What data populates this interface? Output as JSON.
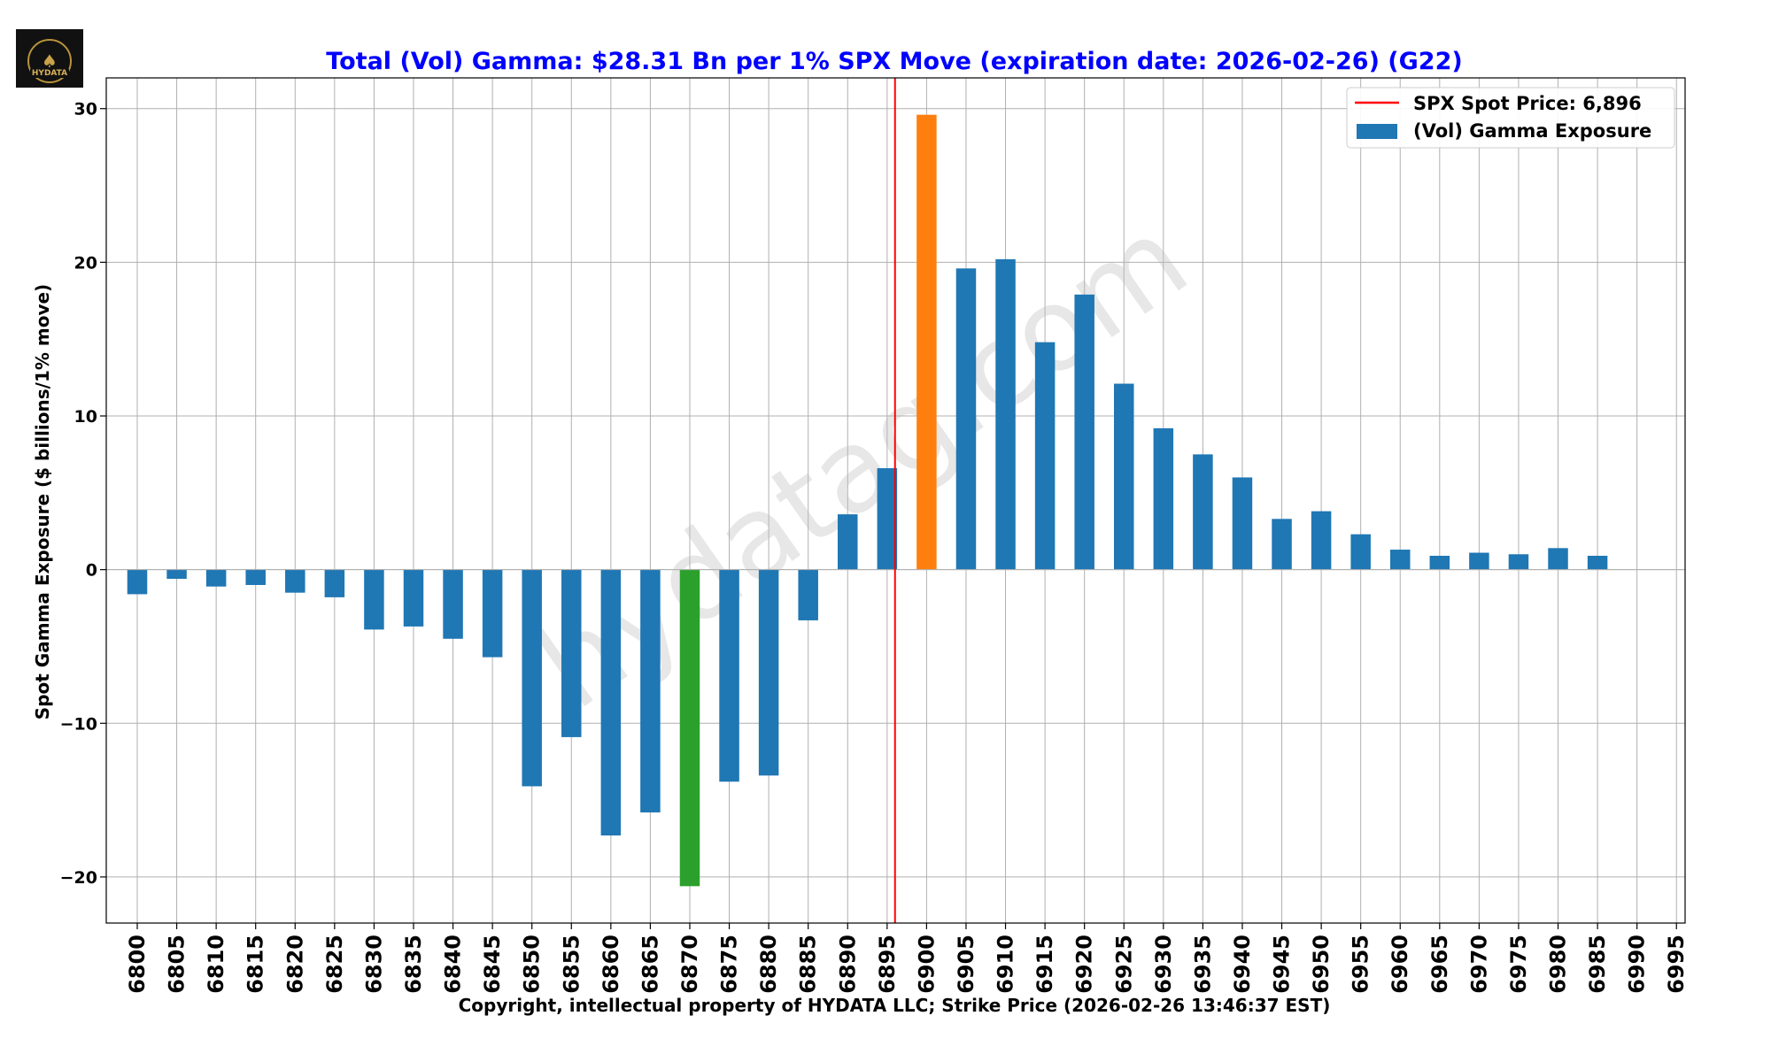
{
  "logo": {
    "text": "HYDATA",
    "icon": "bull-icon"
  },
  "chart_data": {
    "type": "bar",
    "title": "Total (Vol) Gamma: $28.31 Bn per 1% SPX Move (expiration date: 2026-02-26) (G22)",
    "xlabel": "Copyright, intellectual property of HYDATA LLC; Strike Price (2026-02-26 13:46:37 EST)",
    "ylabel": "Spot Gamma Exposure ($ billions/1% move)",
    "ylim": [
      -23,
      32
    ],
    "yticks": [
      30,
      20,
      10,
      0,
      -10,
      -20
    ],
    "ytick_labels": [
      "30",
      "20",
      "10",
      "0",
      "−10",
      "−20"
    ],
    "grid": true,
    "legend_position": "top-right",
    "categories": [
      "6800",
      "6805",
      "6810",
      "6815",
      "6820",
      "6825",
      "6830",
      "6835",
      "6840",
      "6845",
      "6850",
      "6855",
      "6860",
      "6865",
      "6870",
      "6875",
      "6880",
      "6885",
      "6890",
      "6895",
      "6900",
      "6905",
      "6910",
      "6915",
      "6920",
      "6925",
      "6930",
      "6935",
      "6940",
      "6945",
      "6950",
      "6955",
      "6960",
      "6965",
      "6970",
      "6975",
      "6980",
      "6985",
      "6990",
      "6995"
    ],
    "series": [
      {
        "name": "(Vol) Gamma Exposure",
        "color": "#1f77b4",
        "values": [
          -1.6,
          -0.6,
          -1.1,
          -1.0,
          -1.5,
          -1.8,
          -3.9,
          -3.7,
          -4.5,
          -5.7,
          -14.1,
          -10.9,
          -17.3,
          -15.8,
          -20.6,
          -13.8,
          -13.4,
          -3.3,
          3.6,
          6.6,
          29.6,
          19.6,
          20.2,
          14.8,
          17.9,
          12.1,
          9.2,
          7.5,
          6.0,
          3.3,
          3.8,
          2.3,
          1.3,
          0.9,
          1.1,
          1.0,
          1.4,
          0.9,
          0,
          0
        ]
      }
    ],
    "highlights": [
      {
        "category": "6900",
        "color": "#ff7f0e"
      },
      {
        "category": "6870",
        "color": "#2ca02c"
      }
    ],
    "spot_line": {
      "label": "SPX Spot Price: 6,896",
      "value": 6896,
      "color": "#ff0000"
    },
    "watermark": "hydatag.com",
    "title_color": "#0000ff"
  }
}
